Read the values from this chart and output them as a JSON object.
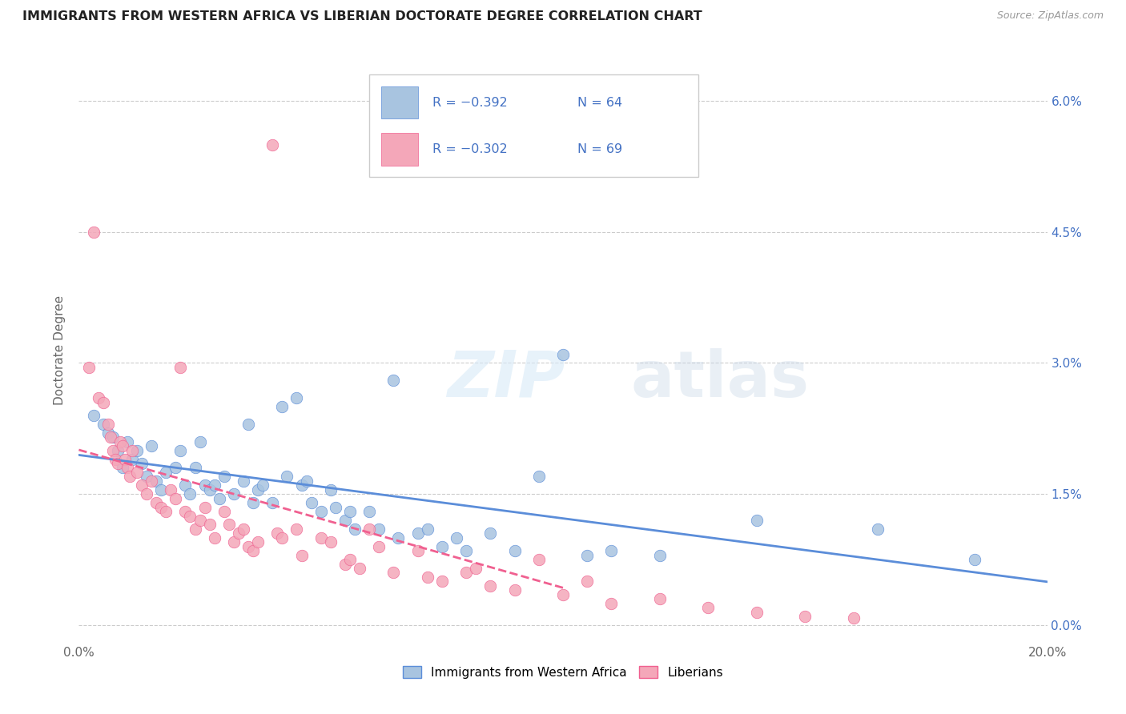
{
  "title": "IMMIGRANTS FROM WESTERN AFRICA VS LIBERIAN DOCTORATE DEGREE CORRELATION CHART",
  "source": "Source: ZipAtlas.com",
  "ylabel": "Doctorate Degree",
  "ytick_vals": [
    0.0,
    1.5,
    3.0,
    4.5,
    6.0
  ],
  "xmin": 0.0,
  "xmax": 20.0,
  "ymin": -0.2,
  "ymax": 6.5,
  "legend_r_blue": "R = −0.392",
  "legend_n_blue": "N = 64",
  "legend_r_pink": "R = −0.302",
  "legend_n_pink": "N = 69",
  "color_blue": "#a8c4e0",
  "color_pink": "#f4a7b9",
  "color_blue_line": "#5b8dd9",
  "color_pink_line": "#f06090",
  "color_text_blue": "#4472c4",
  "watermark_zip": "ZIP",
  "watermark_atlas": "atlas",
  "blue_scatter": [
    [
      0.3,
      2.4
    ],
    [
      0.5,
      2.3
    ],
    [
      0.6,
      2.2
    ],
    [
      0.7,
      2.15
    ],
    [
      0.8,
      2.0
    ],
    [
      0.9,
      1.8
    ],
    [
      1.0,
      2.1
    ],
    [
      1.1,
      1.9
    ],
    [
      1.2,
      2.0
    ],
    [
      1.3,
      1.85
    ],
    [
      1.4,
      1.7
    ],
    [
      1.5,
      2.05
    ],
    [
      1.6,
      1.65
    ],
    [
      1.7,
      1.55
    ],
    [
      1.8,
      1.75
    ],
    [
      2.0,
      1.8
    ],
    [
      2.1,
      2.0
    ],
    [
      2.2,
      1.6
    ],
    [
      2.3,
      1.5
    ],
    [
      2.4,
      1.8
    ],
    [
      2.5,
      2.1
    ],
    [
      2.6,
      1.6
    ],
    [
      2.7,
      1.55
    ],
    [
      2.8,
      1.6
    ],
    [
      2.9,
      1.45
    ],
    [
      3.0,
      1.7
    ],
    [
      3.2,
      1.5
    ],
    [
      3.4,
      1.65
    ],
    [
      3.5,
      2.3
    ],
    [
      3.6,
      1.4
    ],
    [
      3.7,
      1.55
    ],
    [
      3.8,
      1.6
    ],
    [
      4.0,
      1.4
    ],
    [
      4.2,
      2.5
    ],
    [
      4.3,
      1.7
    ],
    [
      4.5,
      2.6
    ],
    [
      4.6,
      1.6
    ],
    [
      4.7,
      1.65
    ],
    [
      4.8,
      1.4
    ],
    [
      5.0,
      1.3
    ],
    [
      5.2,
      1.55
    ],
    [
      5.3,
      1.35
    ],
    [
      5.5,
      1.2
    ],
    [
      5.6,
      1.3
    ],
    [
      5.7,
      1.1
    ],
    [
      6.0,
      1.3
    ],
    [
      6.2,
      1.1
    ],
    [
      6.5,
      2.8
    ],
    [
      6.6,
      1.0
    ],
    [
      7.0,
      1.05
    ],
    [
      7.2,
      1.1
    ],
    [
      7.5,
      0.9
    ],
    [
      7.8,
      1.0
    ],
    [
      8.0,
      0.85
    ],
    [
      8.5,
      1.05
    ],
    [
      9.0,
      0.85
    ],
    [
      9.5,
      1.7
    ],
    [
      10.0,
      3.1
    ],
    [
      10.5,
      0.8
    ],
    [
      11.0,
      0.85
    ],
    [
      12.0,
      0.8
    ],
    [
      14.0,
      1.2
    ],
    [
      16.5,
      1.1
    ],
    [
      18.5,
      0.75
    ]
  ],
  "pink_scatter": [
    [
      0.2,
      2.95
    ],
    [
      0.3,
      4.5
    ],
    [
      0.4,
      2.6
    ],
    [
      0.5,
      2.55
    ],
    [
      0.6,
      2.3
    ],
    [
      0.65,
      2.15
    ],
    [
      0.7,
      2.0
    ],
    [
      0.75,
      1.9
    ],
    [
      0.8,
      1.85
    ],
    [
      0.85,
      2.1
    ],
    [
      0.9,
      2.05
    ],
    [
      0.95,
      1.9
    ],
    [
      1.0,
      1.8
    ],
    [
      1.05,
      1.7
    ],
    [
      1.1,
      2.0
    ],
    [
      1.2,
      1.75
    ],
    [
      1.3,
      1.6
    ],
    [
      1.4,
      1.5
    ],
    [
      1.5,
      1.65
    ],
    [
      1.6,
      1.4
    ],
    [
      1.7,
      1.35
    ],
    [
      1.8,
      1.3
    ],
    [
      1.9,
      1.55
    ],
    [
      2.0,
      1.45
    ],
    [
      2.1,
      2.95
    ],
    [
      2.2,
      1.3
    ],
    [
      2.3,
      1.25
    ],
    [
      2.4,
      1.1
    ],
    [
      2.5,
      1.2
    ],
    [
      2.6,
      1.35
    ],
    [
      2.7,
      1.15
    ],
    [
      2.8,
      1.0
    ],
    [
      3.0,
      1.3
    ],
    [
      3.1,
      1.15
    ],
    [
      3.2,
      0.95
    ],
    [
      3.3,
      1.05
    ],
    [
      3.4,
      1.1
    ],
    [
      3.5,
      0.9
    ],
    [
      3.6,
      0.85
    ],
    [
      3.7,
      0.95
    ],
    [
      4.0,
      5.5
    ],
    [
      4.1,
      1.05
    ],
    [
      4.2,
      1.0
    ],
    [
      4.5,
      1.1
    ],
    [
      4.6,
      0.8
    ],
    [
      5.0,
      1.0
    ],
    [
      5.2,
      0.95
    ],
    [
      5.5,
      0.7
    ],
    [
      5.6,
      0.75
    ],
    [
      5.8,
      0.65
    ],
    [
      6.0,
      1.1
    ],
    [
      6.2,
      0.9
    ],
    [
      6.5,
      0.6
    ],
    [
      7.0,
      0.85
    ],
    [
      7.2,
      0.55
    ],
    [
      7.5,
      0.5
    ],
    [
      8.0,
      0.6
    ],
    [
      8.2,
      0.65
    ],
    [
      8.5,
      0.45
    ],
    [
      9.0,
      0.4
    ],
    [
      9.5,
      0.75
    ],
    [
      10.0,
      0.35
    ],
    [
      10.5,
      0.5
    ],
    [
      11.0,
      0.25
    ],
    [
      12.0,
      0.3
    ],
    [
      13.0,
      0.2
    ],
    [
      14.0,
      0.15
    ],
    [
      15.0,
      0.1
    ],
    [
      16.0,
      0.08
    ]
  ]
}
